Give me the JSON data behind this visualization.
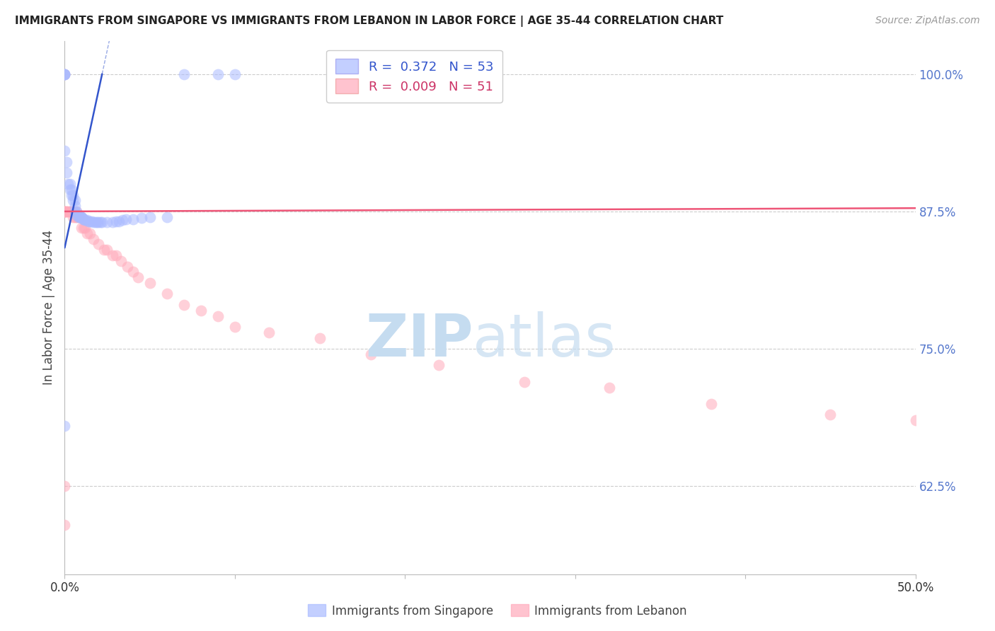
{
  "title": "IMMIGRANTS FROM SINGAPORE VS IMMIGRANTS FROM LEBANON IN LABOR FORCE | AGE 35-44 CORRELATION CHART",
  "source": "Source: ZipAtlas.com",
  "ylabel": "In Labor Force | Age 35-44",
  "xlim": [
    0.0,
    0.5
  ],
  "ylim": [
    0.545,
    1.03
  ],
  "yticks": [
    0.625,
    0.75,
    0.875,
    1.0
  ],
  "ytick_labels": [
    "62.5%",
    "75.0%",
    "87.5%",
    "100.0%"
  ],
  "xticks": [
    0.0,
    0.1,
    0.2,
    0.3,
    0.4,
    0.5
  ],
  "xtick_labels": [
    "0.0%",
    "",
    "",
    "",
    "",
    "50.0%"
  ],
  "singapore_color": "#aabbff",
  "lebanon_color": "#ffaabb",
  "singapore_line_color": "#3355cc",
  "lebanon_line_color": "#ee5577",
  "background_color": "#ffffff",
  "grid_color": "#cccccc",
  "singapore_R": 0.372,
  "singapore_N": 53,
  "lebanon_R": 0.009,
  "lebanon_N": 51,
  "sg_line_x0": 0.0,
  "sg_line_y0": 0.842,
  "sg_line_x1": 0.022,
  "sg_line_y1": 1.0,
  "lb_line_x0": 0.0,
  "lb_line_y0": 0.875,
  "lb_line_x1": 0.5,
  "lb_line_y1": 0.878,
  "singapore_x": [
    0.0,
    0.0,
    0.0,
    0.0,
    0.0,
    0.001,
    0.001,
    0.002,
    0.003,
    0.003,
    0.004,
    0.004,
    0.005,
    0.005,
    0.006,
    0.006,
    0.006,
    0.007,
    0.007,
    0.008,
    0.008,
    0.009,
    0.009,
    0.01,
    0.01,
    0.01,
    0.011,
    0.011,
    0.012,
    0.013,
    0.014,
    0.015,
    0.016,
    0.017,
    0.018,
    0.019,
    0.02,
    0.021,
    0.022,
    0.025,
    0.028,
    0.03,
    0.032,
    0.034,
    0.036,
    0.04,
    0.045,
    0.05,
    0.06,
    0.07,
    0.09,
    0.1,
    0.0
  ],
  "singapore_y": [
    1.0,
    1.0,
    1.0,
    1.0,
    0.93,
    0.92,
    0.91,
    0.9,
    0.9,
    0.895,
    0.895,
    0.89,
    0.89,
    0.885,
    0.885,
    0.88,
    0.875,
    0.875,
    0.872,
    0.872,
    0.87,
    0.87,
    0.87,
    0.87,
    0.87,
    0.87,
    0.868,
    0.868,
    0.867,
    0.867,
    0.866,
    0.866,
    0.866,
    0.865,
    0.865,
    0.865,
    0.865,
    0.865,
    0.865,
    0.865,
    0.865,
    0.866,
    0.866,
    0.867,
    0.868,
    0.868,
    0.869,
    0.87,
    0.87,
    1.0,
    1.0,
    1.0,
    0.68
  ],
  "lebanon_x": [
    0.0,
    0.0,
    0.0,
    0.0,
    0.0,
    0.001,
    0.001,
    0.002,
    0.003,
    0.003,
    0.004,
    0.005,
    0.005,
    0.006,
    0.007,
    0.007,
    0.008,
    0.009,
    0.01,
    0.01,
    0.011,
    0.012,
    0.013,
    0.015,
    0.017,
    0.02,
    0.023,
    0.025,
    0.028,
    0.03,
    0.033,
    0.037,
    0.04,
    0.043,
    0.05,
    0.06,
    0.07,
    0.08,
    0.09,
    0.1,
    0.12,
    0.15,
    0.18,
    0.22,
    0.27,
    0.32,
    0.38,
    0.45,
    0.5,
    0.0,
    0.0
  ],
  "lebanon_y": [
    1.0,
    0.875,
    0.875,
    0.875,
    0.875,
    0.875,
    0.875,
    0.875,
    0.875,
    0.875,
    0.875,
    0.875,
    0.87,
    0.87,
    0.875,
    0.87,
    0.87,
    0.87,
    0.87,
    0.86,
    0.86,
    0.86,
    0.855,
    0.855,
    0.85,
    0.845,
    0.84,
    0.84,
    0.835,
    0.835,
    0.83,
    0.825,
    0.82,
    0.815,
    0.81,
    0.8,
    0.79,
    0.785,
    0.78,
    0.77,
    0.765,
    0.76,
    0.745,
    0.735,
    0.72,
    0.715,
    0.7,
    0.69,
    0.685,
    0.625,
    0.59
  ]
}
